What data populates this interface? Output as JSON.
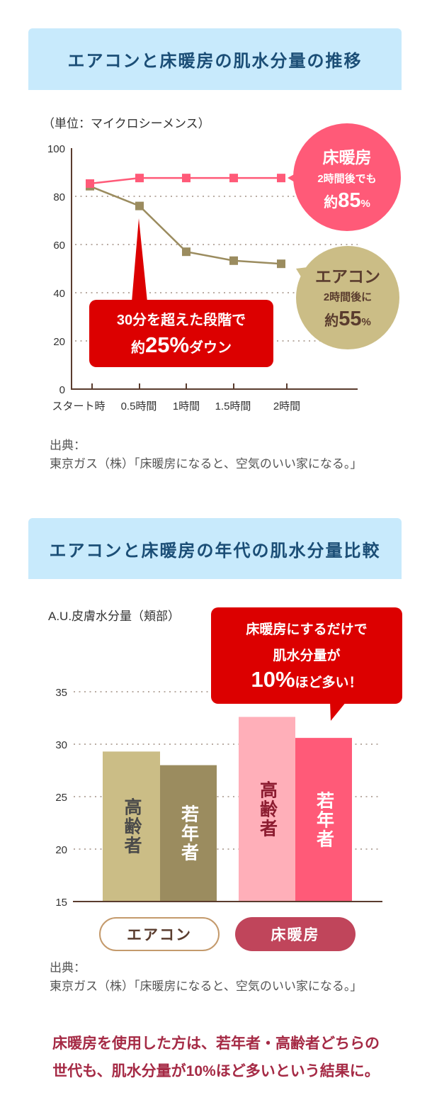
{
  "sections": [
    {
      "title": "エアコンと床暖房の肌水分量の推移",
      "unit_label": "（単位：マイクロシーメンス）",
      "annotations": {
        "drop_callout": {
          "line1": "30分を超えた段階で",
          "prefix": "約",
          "value": "25%",
          "suffix": "ダウン"
        },
        "floor_bubble": {
          "title": "床暖房",
          "line2": "2時間後でも",
          "prefix": "約",
          "value": "85",
          "unit": "%"
        },
        "aircon_bubble": {
          "title": "エアコン",
          "line2": "2時間後に",
          "prefix": "約",
          "value": "55",
          "unit": "%"
        }
      },
      "source": {
        "label": "出典：",
        "text": "東京ガス（株）「床暖房になると、空気のいい家になる。」"
      }
    },
    {
      "title": "エアコンと床暖房の年代の肌水分量比較",
      "unit_label": "A.U.皮膚水分量（頬部）",
      "annotations": {
        "callout": {
          "line1": "床暖房にするだけで",
          "line2": "肌水分量が",
          "value": "10%",
          "suffix": "ほど多い！"
        }
      },
      "legend": [
        {
          "label": "エアコン"
        },
        {
          "label": "床暖房"
        }
      ],
      "source": {
        "label": "出典：",
        "text": "東京ガス（株）「床暖房になると、空気のいい家になる。」"
      }
    }
  ],
  "conclusion": {
    "line1": "床暖房を使用した方は、若年者・高齢者どちらの",
    "line2": "世代も、肌水分量が10%ほど多いという結果に。"
  },
  "colors": {
    "floor": "#ff5a78",
    "aircon_line": "#9b8c5f",
    "aircon_bubble": "#cbbd86",
    "aircon_bubble_text": "#5a3c2e",
    "callout_red": "#dc0000",
    "axis": "#5a3c2e",
    "grid": "#b9aca3",
    "bars": {
      "エアコン": [
        "#cbbd86",
        "#9b8c5f"
      ],
      "床暖房": [
        "#ffafb9",
        "#ff5a78"
      ]
    },
    "bar_labels": {
      "エアコン": [
        "#4a4a4a",
        "#ffffff"
      ],
      "床暖房": [
        "#8c1c30",
        "#ffffff"
      ]
    }
  },
  "chart_data": [
    {
      "type": "line",
      "title": "エアコンと床暖房の肌水分量の推移",
      "xlabel": "",
      "ylabel": "（単位：マイクロシーメンス）",
      "categories": [
        "スタート時",
        "0.5時間",
        "1時間",
        "1.5時間",
        "2時間"
      ],
      "series": [
        {
          "name": "床暖房",
          "color": "#ff5a78",
          "values": [
            85.3,
            87.6,
            87.6,
            87.6,
            87.6
          ]
        },
        {
          "name": "エアコン",
          "color": "#9b8c5f",
          "values": [
            84.2,
            76.0,
            57.0,
            53.3,
            52.0
          ]
        }
      ],
      "ylim": [
        0,
        100
      ],
      "yticks": [
        0,
        20,
        40,
        60,
        80,
        100
      ],
      "grid": "horizontal dotted",
      "legend": "annotation bubbles on right"
    },
    {
      "type": "bar",
      "title": "エアコンと床暖房の年代の肌水分量比較",
      "xlabel": "",
      "ylabel": "A.U.皮膚水分量（頬部）",
      "categories": [
        "エアコン",
        "床暖房"
      ],
      "series": [
        {
          "name": "高齢者",
          "values": [
            29.3,
            32.6
          ]
        },
        {
          "name": "若年者",
          "values": [
            28.0,
            30.6
          ]
        }
      ],
      "ylim": [
        15,
        35
      ],
      "yticks": [
        15,
        20,
        25,
        30,
        35
      ],
      "grid": "horizontal dotted",
      "legend": "bottom pills"
    }
  ]
}
